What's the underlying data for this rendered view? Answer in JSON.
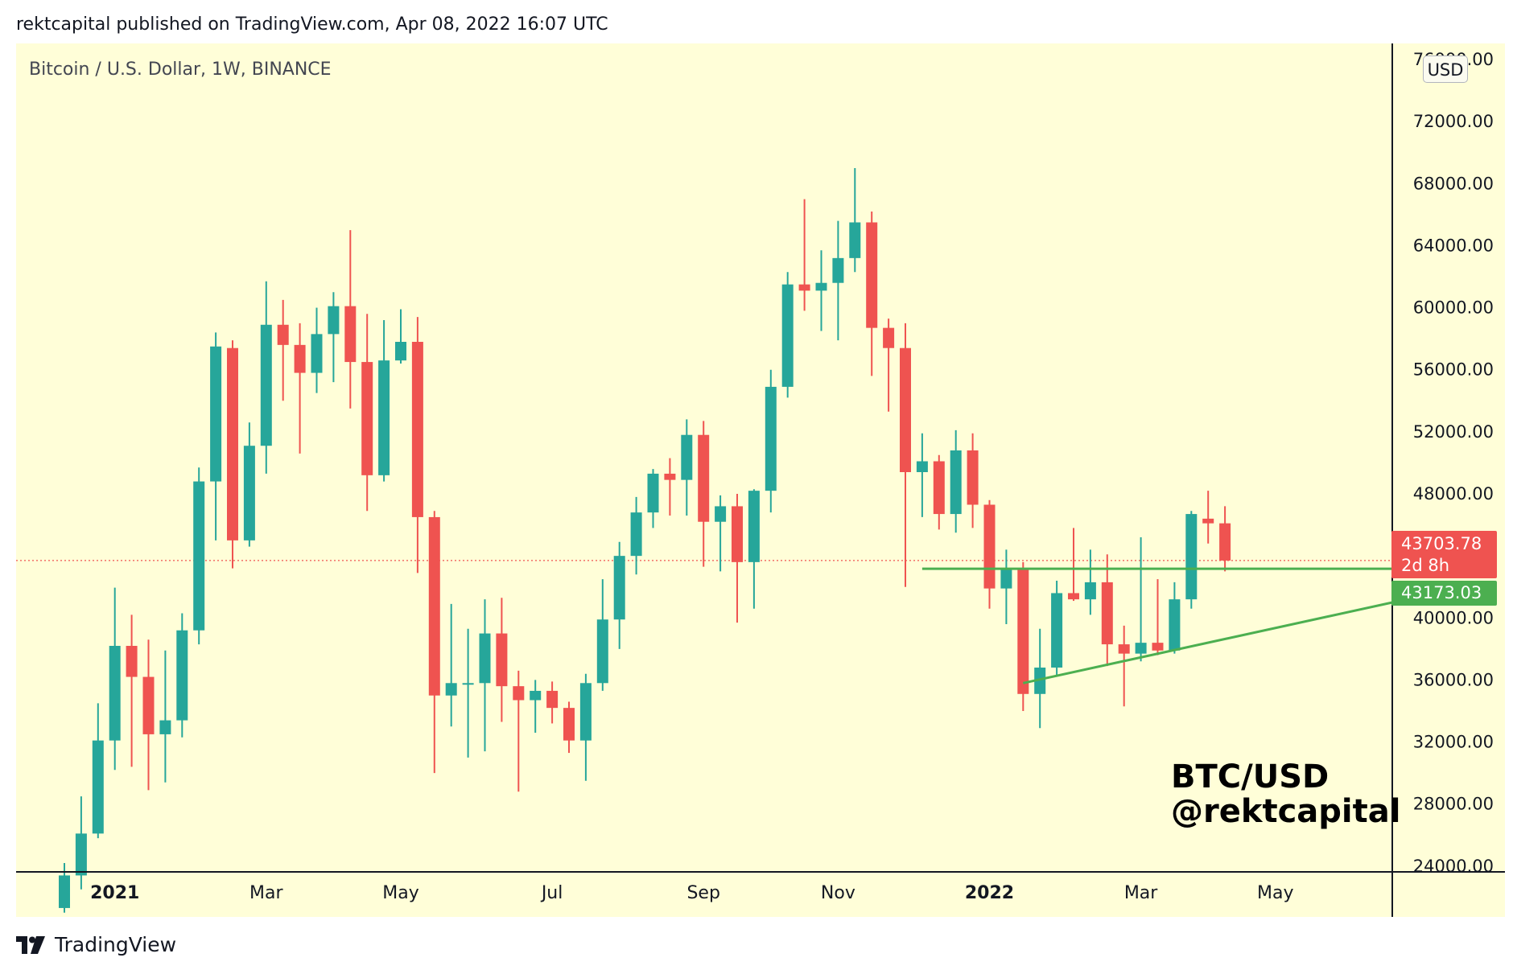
{
  "header": {
    "published_text": "rektcapital published on TradingView.com, Apr 08, 2022 16:07 UTC"
  },
  "chart_title": "Bitcoin / U.S. Dollar, 1W, BINANCE",
  "currency_label": "USD",
  "last_price": {
    "value": "43703.78",
    "countdown": "2d 8h"
  },
  "level_tag": "43173.03",
  "watermark": {
    "line1": "BTC/USD",
    "line2": "@rektcapital"
  },
  "footer": {
    "brand": "TradingView"
  },
  "colors": {
    "background": "#fffed8",
    "up": "#26a69a",
    "down": "#ef5350",
    "trendline": "#4caf50",
    "axis": "#131722"
  },
  "chart_data": {
    "type": "candlestick",
    "title": "Bitcoin / U.S. Dollar, 1W, BINANCE",
    "xlabel": "",
    "ylabel": "",
    "ylim": [
      20000,
      76000
    ],
    "y_ticks": [
      "76000.00",
      "72000.00",
      "68000.00",
      "64000.00",
      "60000.00",
      "56000.00",
      "52000.00",
      "48000.00",
      "44000.00",
      "40000.00",
      "36000.00",
      "32000.00",
      "28000.00",
      "24000.00"
    ],
    "x_ticks": [
      {
        "label": "2021",
        "bold": true,
        "index": 3
      },
      {
        "label": "Mar",
        "bold": false,
        "index": 12
      },
      {
        "label": "May",
        "bold": false,
        "index": 20
      },
      {
        "label": "Jul",
        "bold": false,
        "index": 29
      },
      {
        "label": "Sep",
        "bold": false,
        "index": 38
      },
      {
        "label": "Nov",
        "bold": false,
        "index": 46
      },
      {
        "label": "2022",
        "bold": true,
        "index": 55
      },
      {
        "label": "Mar",
        "bold": false,
        "index": 64
      },
      {
        "label": "May",
        "bold": false,
        "index": 72
      }
    ],
    "candles": [
      {
        "o": 21300,
        "h": 24200,
        "l": 21000,
        "c": 23400
      },
      {
        "o": 23400,
        "h": 28500,
        "l": 22500,
        "c": 26100
      },
      {
        "o": 26100,
        "h": 34500,
        "l": 25800,
        "c": 32100
      },
      {
        "o": 32100,
        "h": 41950,
        "l": 30200,
        "c": 38200
      },
      {
        "o": 38200,
        "h": 40200,
        "l": 30400,
        "c": 36200
      },
      {
        "o": 36200,
        "h": 38600,
        "l": 28900,
        "c": 32500
      },
      {
        "o": 32500,
        "h": 37900,
        "l": 29400,
        "c": 33400
      },
      {
        "o": 33400,
        "h": 40300,
        "l": 32300,
        "c": 39200
      },
      {
        "o": 39200,
        "h": 49700,
        "l": 38300,
        "c": 48800
      },
      {
        "o": 48800,
        "h": 58400,
        "l": 45000,
        "c": 57500
      },
      {
        "o": 57400,
        "h": 57900,
        "l": 43200,
        "c": 45000
      },
      {
        "o": 45000,
        "h": 52600,
        "l": 44600,
        "c": 51100
      },
      {
        "o": 51100,
        "h": 61700,
        "l": 49300,
        "c": 58900
      },
      {
        "o": 58900,
        "h": 60500,
        "l": 54000,
        "c": 57600
      },
      {
        "o": 57600,
        "h": 59000,
        "l": 50600,
        "c": 55800
      },
      {
        "o": 55800,
        "h": 60000,
        "l": 54500,
        "c": 58300
      },
      {
        "o": 58300,
        "h": 61000,
        "l": 55200,
        "c": 60100
      },
      {
        "o": 60100,
        "h": 65000,
        "l": 53500,
        "c": 56500
      },
      {
        "o": 56500,
        "h": 59600,
        "l": 46900,
        "c": 49200
      },
      {
        "o": 49200,
        "h": 59200,
        "l": 48800,
        "c": 56600
      },
      {
        "o": 56600,
        "h": 59900,
        "l": 56400,
        "c": 57800
      },
      {
        "o": 57800,
        "h": 59400,
        "l": 42900,
        "c": 46500
      },
      {
        "o": 46500,
        "h": 46900,
        "l": 30000,
        "c": 35000
      },
      {
        "o": 35000,
        "h": 40900,
        "l": 33000,
        "c": 35800
      },
      {
        "o": 35800,
        "h": 39300,
        "l": 31000,
        "c": 35800
      },
      {
        "o": 35800,
        "h": 41200,
        "l": 31400,
        "c": 39000
      },
      {
        "o": 39000,
        "h": 41300,
        "l": 33300,
        "c": 35600
      },
      {
        "o": 35600,
        "h": 36600,
        "l": 28800,
        "c": 34700
      },
      {
        "o": 34700,
        "h": 36000,
        "l": 32600,
        "c": 35300
      },
      {
        "o": 35300,
        "h": 35900,
        "l": 33200,
        "c": 34200
      },
      {
        "o": 34200,
        "h": 34600,
        "l": 31300,
        "c": 32100
      },
      {
        "o": 32100,
        "h": 36400,
        "l": 29500,
        "c": 35800
      },
      {
        "o": 35800,
        "h": 42500,
        "l": 35300,
        "c": 39900
      },
      {
        "o": 39900,
        "h": 44900,
        "l": 38000,
        "c": 44000
      },
      {
        "o": 44000,
        "h": 47800,
        "l": 42800,
        "c": 46800
      },
      {
        "o": 46800,
        "h": 49600,
        "l": 45800,
        "c": 49300
      },
      {
        "o": 49300,
        "h": 50300,
        "l": 46600,
        "c": 48900
      },
      {
        "o": 48900,
        "h": 52800,
        "l": 46600,
        "c": 51800
      },
      {
        "o": 51800,
        "h": 52700,
        "l": 43300,
        "c": 46200
      },
      {
        "o": 46200,
        "h": 47900,
        "l": 43000,
        "c": 47200
      },
      {
        "o": 47200,
        "h": 48000,
        "l": 39700,
        "c": 43600
      },
      {
        "o": 43600,
        "h": 48300,
        "l": 40600,
        "c": 48200
      },
      {
        "o": 48200,
        "h": 56000,
        "l": 46800,
        "c": 54900
      },
      {
        "o": 54900,
        "h": 62300,
        "l": 54200,
        "c": 61500
      },
      {
        "o": 61500,
        "h": 67000,
        "l": 59800,
        "c": 61100
      },
      {
        "o": 61100,
        "h": 63700,
        "l": 58500,
        "c": 61600
      },
      {
        "o": 61600,
        "h": 65600,
        "l": 57900,
        "c": 63200
      },
      {
        "o": 63200,
        "h": 69000,
        "l": 62300,
        "c": 65500
      },
      {
        "o": 65500,
        "h": 66200,
        "l": 55600,
        "c": 58700
      },
      {
        "o": 58700,
        "h": 59300,
        "l": 53300,
        "c": 57400
      },
      {
        "o": 57400,
        "h": 59000,
        "l": 42000,
        "c": 49400
      },
      {
        "o": 49400,
        "h": 51900,
        "l": 46500,
        "c": 50100
      },
      {
        "o": 50100,
        "h": 50500,
        "l": 45700,
        "c": 46700
      },
      {
        "o": 46700,
        "h": 52100,
        "l": 45500,
        "c": 50800
      },
      {
        "o": 50800,
        "h": 51900,
        "l": 45800,
        "c": 47300
      },
      {
        "o": 47300,
        "h": 47600,
        "l": 40600,
        "c": 41900
      },
      {
        "o": 41900,
        "h": 44400,
        "l": 39600,
        "c": 43100
      },
      {
        "o": 43100,
        "h": 43600,
        "l": 34000,
        "c": 35100
      },
      {
        "o": 35100,
        "h": 39300,
        "l": 32900,
        "c": 36800
      },
      {
        "o": 36800,
        "h": 42400,
        "l": 36300,
        "c": 41600
      },
      {
        "o": 41600,
        "h": 45800,
        "l": 41100,
        "c": 41200
      },
      {
        "o": 41200,
        "h": 44400,
        "l": 40200,
        "c": 42300
      },
      {
        "o": 42300,
        "h": 44100,
        "l": 36900,
        "c": 38300
      },
      {
        "o": 38300,
        "h": 39500,
        "l": 34300,
        "c": 37700
      },
      {
        "o": 37700,
        "h": 45200,
        "l": 37200,
        "c": 38400
      },
      {
        "o": 38400,
        "h": 42500,
        "l": 37600,
        "c": 37900
      },
      {
        "o": 37900,
        "h": 42300,
        "l": 37700,
        "c": 41200
      },
      {
        "o": 41200,
        "h": 46900,
        "l": 40600,
        "c": 46700
      },
      {
        "o": 46400,
        "h": 48200,
        "l": 44800,
        "c": 46100
      },
      {
        "o": 46100,
        "h": 47200,
        "l": 43000,
        "c": 43700
      }
    ],
    "last_price": 43703.78,
    "annotations": [
      {
        "type": "horizontal_level",
        "value": 43173.03,
        "start_index": 51
      },
      {
        "type": "rising_trendline",
        "from": {
          "index": 57,
          "price": 35800
        },
        "to": {
          "index": 79.8,
          "price": 41200
        }
      }
    ]
  }
}
